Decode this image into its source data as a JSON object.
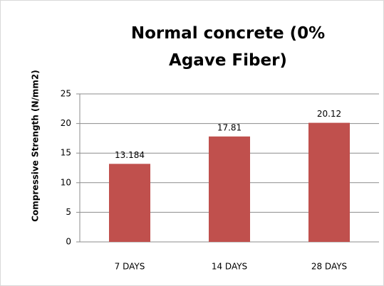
{
  "chart_data": {
    "type": "bar",
    "title": "Normal concrete (0% Agave Fiber)",
    "y_label": "Compressive Strength (N/mm2)",
    "categories": [
      "7 DAYS",
      "14 DAYS",
      "28 DAYS"
    ],
    "values": [
      13.184,
      17.81,
      20.12
    ],
    "color": "#c0504d",
    "ylim": [
      0,
      25
    ],
    "yticks": [
      0,
      5,
      10,
      15,
      20,
      25
    ],
    "grid": true
  }
}
